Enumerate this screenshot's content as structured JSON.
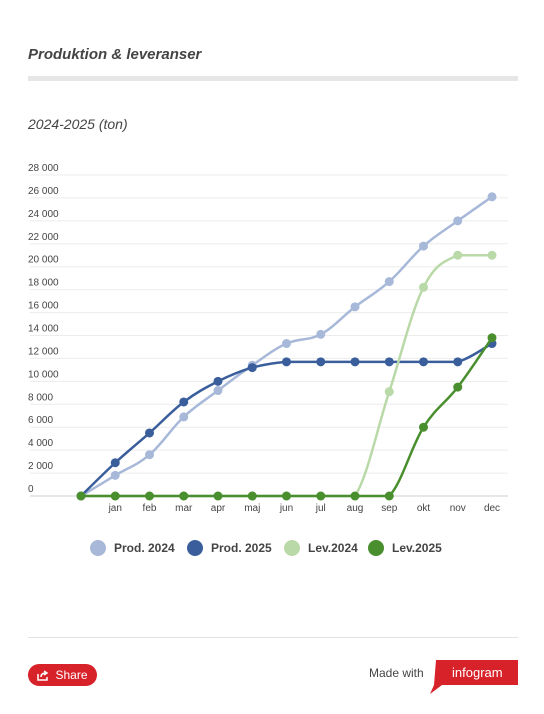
{
  "header": {
    "title": "Produktion & leveranser"
  },
  "chart_data": {
    "type": "line",
    "title": "2024-2025 (ton)",
    "xlabel": "",
    "ylabel": "",
    "categories": [
      "",
      "jan",
      "feb",
      "mar",
      "apr",
      "maj",
      "jun",
      "jul",
      "aug",
      "sep",
      "okt",
      "nov",
      "dec"
    ],
    "ylim": [
      0,
      28000
    ],
    "y_ticks": [
      0,
      2000,
      4000,
      6000,
      8000,
      10000,
      12000,
      14000,
      16000,
      18000,
      20000,
      22000,
      24000,
      26000,
      28000
    ],
    "y_tick_labels": [
      "0",
      "2 000",
      "4 000",
      "6 000",
      "8 000",
      "10 000",
      "12 000",
      "14 000",
      "16 000",
      "18 000",
      "20 000",
      "22 000",
      "24 000",
      "26 000",
      "28 000"
    ],
    "grid": true,
    "legend_position": "bottom",
    "series": [
      {
        "name": "Prod. 2024",
        "color": "#a7b8d9",
        "values": [
          0,
          1800,
          3600,
          6900,
          9200,
          11400,
          13300,
          14100,
          16500,
          18700,
          21800,
          24000,
          26100
        ]
      },
      {
        "name": "Prod. 2025",
        "color": "#3a5e9c",
        "values": [
          0,
          2900,
          5500,
          8200,
          10000,
          11200,
          11700,
          11700,
          11700,
          11700,
          11700,
          11700,
          13300
        ]
      },
      {
        "name": "Lev.2024",
        "color": "#b9d9a8",
        "values": [
          0,
          0,
          0,
          0,
          0,
          0,
          0,
          0,
          0,
          9100,
          18200,
          21000,
          21000
        ]
      },
      {
        "name": "Lev.2025",
        "color": "#4a8f2e",
        "values": [
          0,
          0,
          0,
          0,
          0,
          0,
          0,
          0,
          0,
          0,
          6000,
          9500,
          13800
        ]
      }
    ]
  },
  "footer": {
    "share_label": "Share",
    "made_with": "Made with",
    "brand": "infogram"
  }
}
